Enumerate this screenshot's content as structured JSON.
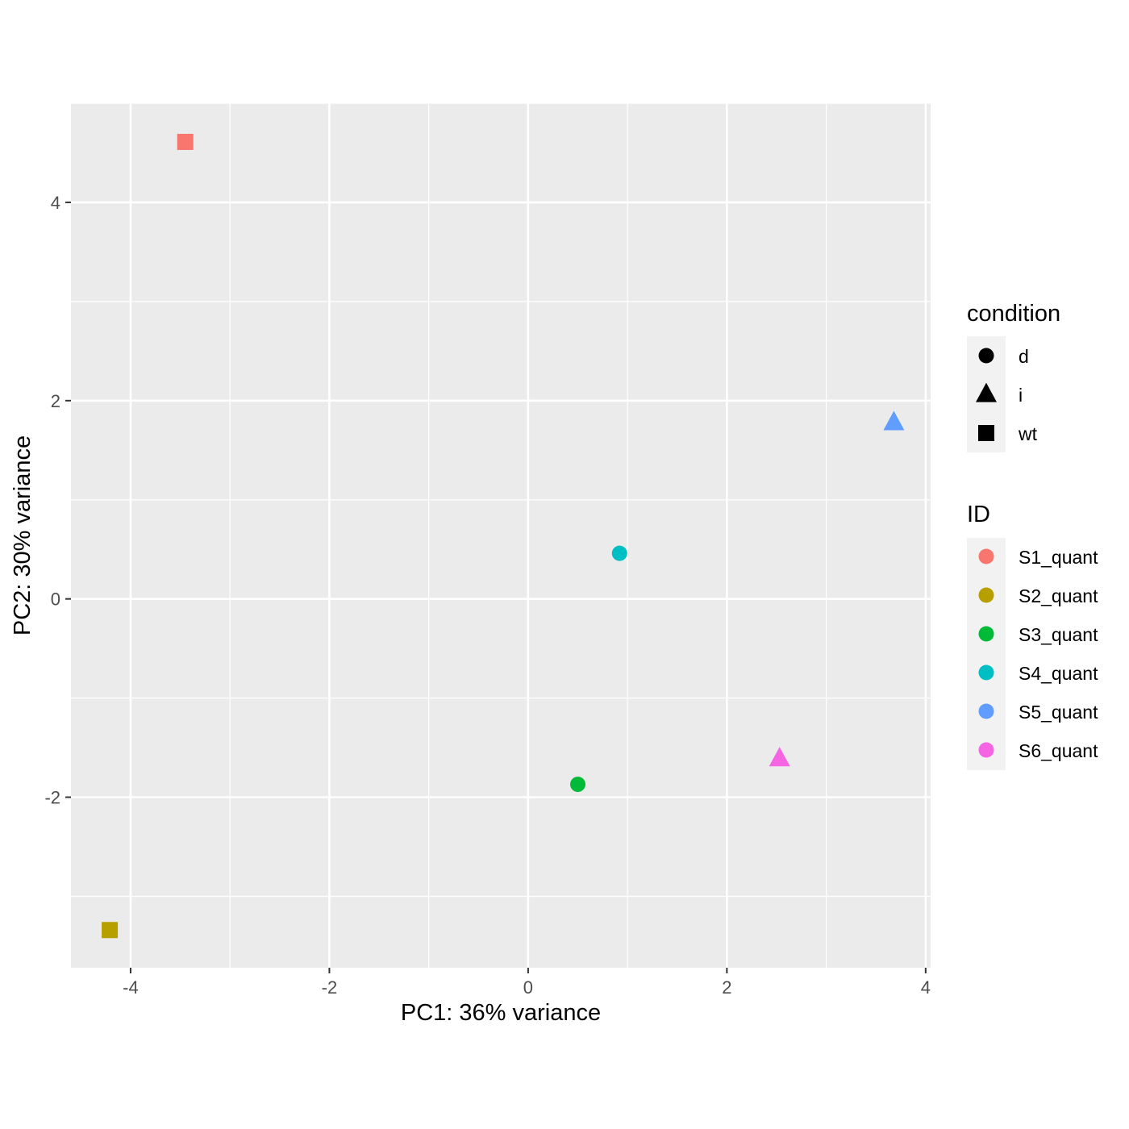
{
  "chart_data": {
    "type": "scatter",
    "xlabel": "PC1: 36% variance",
    "ylabel": "PC2: 30% variance",
    "xlim": [
      -4.6,
      4.05
    ],
    "ylim": [
      -3.72,
      5.0
    ],
    "x_ticks": [
      -4,
      -2,
      0,
      2,
      4
    ],
    "y_ticks": [
      -2,
      0,
      2,
      4
    ],
    "x_tick_labels": [
      "-4",
      "-2",
      "0",
      "2",
      "4"
    ],
    "y_tick_labels": [
      "-2",
      "0",
      "2",
      "4"
    ],
    "grid": true,
    "legend_position": "right",
    "legends": [
      {
        "title": "condition",
        "items": [
          {
            "label": "d",
            "shape": "circle"
          },
          {
            "label": "i",
            "shape": "triangle"
          },
          {
            "label": "wt",
            "shape": "square"
          }
        ]
      },
      {
        "title": "ID",
        "items": [
          {
            "label": "S1_quant",
            "color": "#F8766D"
          },
          {
            "label": "S2_quant",
            "color": "#B79F00"
          },
          {
            "label": "S3_quant",
            "color": "#00BA38"
          },
          {
            "label": "S4_quant",
            "color": "#00BFC4"
          },
          {
            "label": "S5_quant",
            "color": "#619CFF"
          },
          {
            "label": "S6_quant",
            "color": "#F564E3"
          }
        ]
      }
    ],
    "points": [
      {
        "id": "S1_quant",
        "condition": "wt",
        "x": -3.45,
        "y": 4.61,
        "color": "#F8766D"
      },
      {
        "id": "S2_quant",
        "condition": "wt",
        "x": -4.21,
        "y": -3.34,
        "color": "#B79F00"
      },
      {
        "id": "S3_quant",
        "condition": "d",
        "x": 0.5,
        "y": -1.87,
        "color": "#00BA38"
      },
      {
        "id": "S4_quant",
        "condition": "d",
        "x": 0.92,
        "y": 0.46,
        "color": "#00BFC4"
      },
      {
        "id": "S5_quant",
        "condition": "i",
        "x": 3.68,
        "y": 1.78,
        "color": "#619CFF"
      },
      {
        "id": "S6_quant",
        "condition": "i",
        "x": 2.53,
        "y": -1.61,
        "color": "#F564E3"
      }
    ]
  },
  "theme": {
    "panel_background": "#EBEBEB",
    "grid_color": "#FFFFFF",
    "tick_color": "#333333",
    "tick_label_color": "#4D4D4D",
    "legend_key_background": "#F2F2F2"
  }
}
